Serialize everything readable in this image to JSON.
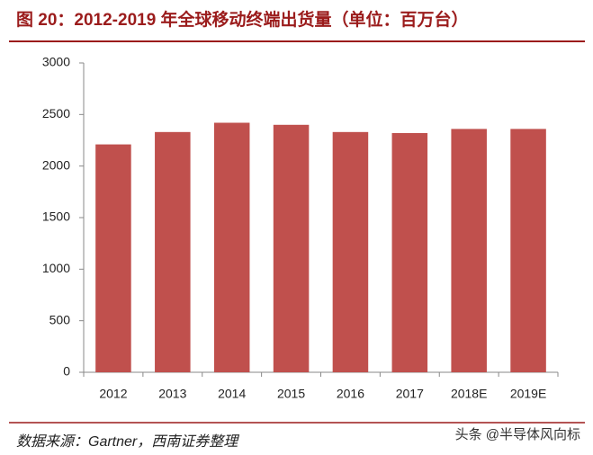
{
  "chart_data": {
    "type": "bar",
    "title": "图 20：2012-2019 年全球移动终端出货量（单位：百万台）",
    "categories": [
      "2012",
      "2013",
      "2014",
      "2015",
      "2016",
      "2017",
      "2018E",
      "2019E"
    ],
    "values": [
      2210,
      2330,
      2420,
      2400,
      2330,
      2320,
      2360,
      2360
    ],
    "color": "#c0504d",
    "ylim": [
      0,
      3000
    ],
    "yticks": [
      0,
      500,
      1000,
      1500,
      2000,
      2500,
      3000
    ],
    "grid": false,
    "source": "数据来源：Gartner，西南证券整理"
  },
  "watermark": "头条 @半导体风向标"
}
